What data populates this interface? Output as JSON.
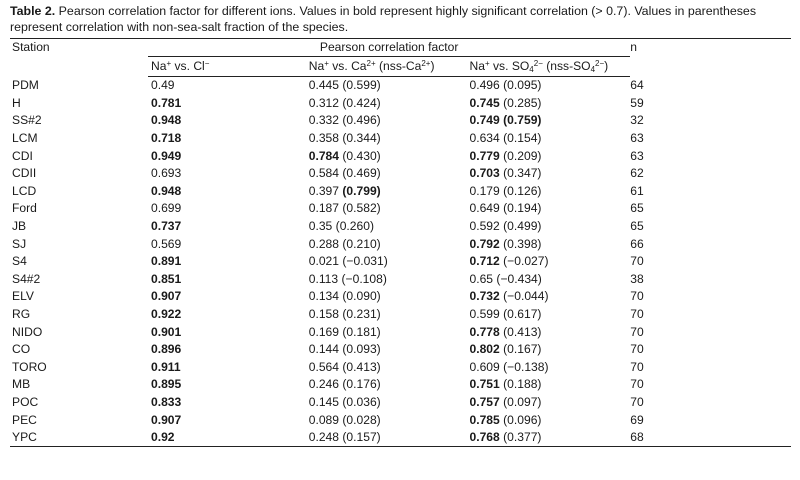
{
  "caption": {
    "label": "Table 2.",
    "text": " Pearson correlation factor for different ions. Values in bold represent highly significant correlation (> 0.7). Values in parentheses represent correlation with non-sea-salt fraction of the species."
  },
  "header": {
    "station": "Station",
    "group": "Pearson correlation factor",
    "n": "n",
    "col_na_cl": {
      "a": "Na",
      "a_sup": "+",
      "b": " vs. Cl",
      "b_sup": "−"
    },
    "col_na_ca": {
      "a": "Na",
      "a_sup": "+",
      "b": " vs. Ca",
      "b_sup": "2+",
      "c": " (nss-Ca",
      "c_sup": "2+",
      "d": ")"
    },
    "col_na_so4": {
      "a": "Na",
      "a_sup": "+",
      "b": " vs. SO",
      "b_sub": "4",
      "b_sup": "2−",
      "c": " (nss-SO",
      "c_sub": "4",
      "c_sup": "2−",
      "d": ")"
    }
  },
  "rows": [
    {
      "station": "PDM",
      "cl": "0.49",
      "cl_bold": false,
      "ca": "0.445",
      "ca_bold": false,
      "ca_nss": "(0.599)",
      "ca_nss_bold": false,
      "so4": "0.496",
      "so4_bold": false,
      "so4_nss": "(0.095)",
      "so4_nss_bold": false,
      "n": "64"
    },
    {
      "station": "H",
      "cl": "0.781",
      "cl_bold": true,
      "ca": "0.312",
      "ca_bold": false,
      "ca_nss": "(0.424)",
      "ca_nss_bold": false,
      "so4": "0.745",
      "so4_bold": true,
      "so4_nss": "(0.285)",
      "so4_nss_bold": false,
      "n": "59"
    },
    {
      "station": "SS#2",
      "cl": "0.948",
      "cl_bold": true,
      "ca": "0.332",
      "ca_bold": false,
      "ca_nss": "(0.496)",
      "ca_nss_bold": false,
      "so4": "0.749",
      "so4_bold": true,
      "so4_nss": "(0.759)",
      "so4_nss_bold": true,
      "n": "32"
    },
    {
      "station": "LCM",
      "cl": "0.718",
      "cl_bold": true,
      "ca": "0.358",
      "ca_bold": false,
      "ca_nss": "(0.344)",
      "ca_nss_bold": false,
      "so4": "0.634",
      "so4_bold": false,
      "so4_nss": "(0.154)",
      "so4_nss_bold": false,
      "n": "63"
    },
    {
      "station": "CDI",
      "cl": "0.949",
      "cl_bold": true,
      "ca": "0.784",
      "ca_bold": true,
      "ca_nss": "(0.430)",
      "ca_nss_bold": false,
      "so4": "0.779",
      "so4_bold": true,
      "so4_nss": "(0.209)",
      "so4_nss_bold": false,
      "n": "63"
    },
    {
      "station": "CDII",
      "cl": "0.693",
      "cl_bold": false,
      "ca": "0.584",
      "ca_bold": false,
      "ca_nss": "(0.469)",
      "ca_nss_bold": false,
      "so4": "0.703",
      "so4_bold": true,
      "so4_nss": "(0.347)",
      "so4_nss_bold": false,
      "n": "62"
    },
    {
      "station": "LCD",
      "cl": "0.948",
      "cl_bold": true,
      "ca": "0.397",
      "ca_bold": false,
      "ca_nss": "(0.799)",
      "ca_nss_bold": true,
      "so4": "0.179",
      "so4_bold": false,
      "so4_nss": "(0.126)",
      "so4_nss_bold": false,
      "n": "61"
    },
    {
      "station": "Ford",
      "cl": "0.699",
      "cl_bold": false,
      "ca": "0.187",
      "ca_bold": false,
      "ca_nss": "(0.582)",
      "ca_nss_bold": false,
      "so4": "0.649",
      "so4_bold": false,
      "so4_nss": "(0.194)",
      "so4_nss_bold": false,
      "n": "65"
    },
    {
      "station": "JB",
      "cl": "0.737",
      "cl_bold": true,
      "ca": "0.35",
      "ca_bold": false,
      "ca_nss": "(0.260)",
      "ca_nss_bold": false,
      "so4": "0.592",
      "so4_bold": false,
      "so4_nss": "(0.499)",
      "so4_nss_bold": false,
      "n": "65"
    },
    {
      "station": "SJ",
      "cl": "0.569",
      "cl_bold": false,
      "ca": "0.288",
      "ca_bold": false,
      "ca_nss": "(0.210)",
      "ca_nss_bold": false,
      "so4": "0.792",
      "so4_bold": true,
      "so4_nss": "(0.398)",
      "so4_nss_bold": false,
      "n": "66"
    },
    {
      "station": "S4",
      "cl": "0.891",
      "cl_bold": true,
      "ca": "0.021",
      "ca_bold": false,
      "ca_nss": "(−0.031)",
      "ca_nss_bold": false,
      "so4": "0.712",
      "so4_bold": true,
      "so4_nss": "(−0.027)",
      "so4_nss_bold": false,
      "n": "70"
    },
    {
      "station": "S4#2",
      "cl": "0.851",
      "cl_bold": true,
      "ca": "0.113",
      "ca_bold": false,
      "ca_nss": "(−0.108)",
      "ca_nss_bold": false,
      "so4": "0.65",
      "so4_bold": false,
      "so4_nss": "(−0.434)",
      "so4_nss_bold": false,
      "n": "38"
    },
    {
      "station": "ELV",
      "cl": "0.907",
      "cl_bold": true,
      "ca": "0.134",
      "ca_bold": false,
      "ca_nss": "(0.090)",
      "ca_nss_bold": false,
      "so4": "0.732",
      "so4_bold": true,
      "so4_nss": "(−0.044)",
      "so4_nss_bold": false,
      "n": "70"
    },
    {
      "station": "RG",
      "cl": "0.922",
      "cl_bold": true,
      "ca": "0.158",
      "ca_bold": false,
      "ca_nss": "(0.231)",
      "ca_nss_bold": false,
      "so4": "0.599",
      "so4_bold": false,
      "so4_nss": "(0.617)",
      "so4_nss_bold": false,
      "n": "70"
    },
    {
      "station": "NIDO",
      "cl": "0.901",
      "cl_bold": true,
      "ca": "0.169",
      "ca_bold": false,
      "ca_nss": "(0.181)",
      "ca_nss_bold": false,
      "so4": "0.778",
      "so4_bold": true,
      "so4_nss": "(0.413)",
      "so4_nss_bold": false,
      "n": "70"
    },
    {
      "station": "CO",
      "cl": "0.896",
      "cl_bold": true,
      "ca": "0.144",
      "ca_bold": false,
      "ca_nss": "(0.093)",
      "ca_nss_bold": false,
      "so4": "0.802",
      "so4_bold": true,
      "so4_nss": "(0.167)",
      "so4_nss_bold": false,
      "n": "70"
    },
    {
      "station": "TORO",
      "cl": "0.911",
      "cl_bold": true,
      "ca": "0.564",
      "ca_bold": false,
      "ca_nss": "(0.413)",
      "ca_nss_bold": false,
      "so4": "0.609",
      "so4_bold": false,
      "so4_nss": "(−0.138)",
      "so4_nss_bold": false,
      "n": "70"
    },
    {
      "station": "MB",
      "cl": "0.895",
      "cl_bold": true,
      "ca": "0.246",
      "ca_bold": false,
      "ca_nss": "(0.176)",
      "ca_nss_bold": false,
      "so4": "0.751",
      "so4_bold": true,
      "so4_nss": "(0.188)",
      "so4_nss_bold": false,
      "n": "70"
    },
    {
      "station": "POC",
      "cl": "0.833",
      "cl_bold": true,
      "ca": "0.145",
      "ca_bold": false,
      "ca_nss": "(0.036)",
      "ca_nss_bold": false,
      "so4": "0.757",
      "so4_bold": true,
      "so4_nss": "(0.097)",
      "so4_nss_bold": false,
      "n": "70"
    },
    {
      "station": "PEC",
      "cl": "0.907",
      "cl_bold": true,
      "ca": "0.089",
      "ca_bold": false,
      "ca_nss": "(0.028)",
      "ca_nss_bold": false,
      "so4": "0.785",
      "so4_bold": true,
      "so4_nss": "(0.096)",
      "so4_nss_bold": false,
      "n": "69"
    },
    {
      "station": "YPC",
      "cl": "0.92",
      "cl_bold": true,
      "ca": "0.248",
      "ca_bold": false,
      "ca_nss": "(0.157)",
      "ca_nss_bold": false,
      "so4": "0.768",
      "so4_bold": true,
      "so4_nss": "(0.377)",
      "so4_nss_bold": false,
      "n": "68"
    }
  ]
}
